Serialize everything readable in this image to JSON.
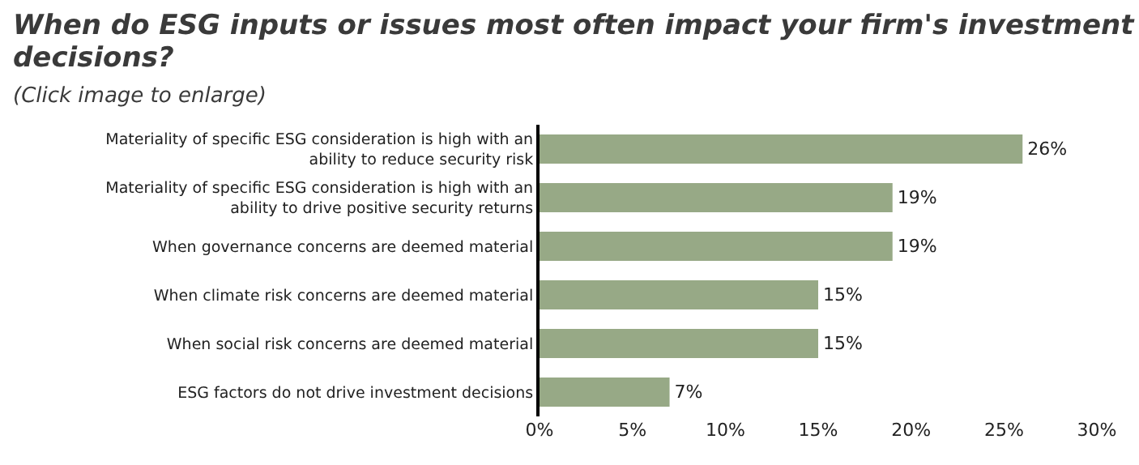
{
  "chart_data": {
    "type": "bar",
    "orientation": "horizontal",
    "title": "When do ESG inputs or issues most often impact your firm's investment decisions?",
    "subtitle": "(Click image to enlarge)",
    "categories": [
      "Materiality of specific ESG consideration is high with an ability to reduce security risk",
      "Materiality of specific ESG consideration is high with an ability to drive positive security returns",
      "When governance concerns are deemed material",
      "When climate risk concerns are deemed material",
      "When social risk concerns are deemed material",
      "ESG factors do not drive investment decisions"
    ],
    "values": [
      26,
      19,
      19,
      15,
      15,
      7
    ],
    "value_labels": [
      "26%",
      "19%",
      "19%",
      "15%",
      "15%",
      "7%"
    ],
    "color": "#97a986",
    "xlim": [
      0,
      30
    ],
    "xticks": [
      {
        "value": 0,
        "label": "0%"
      },
      {
        "value": 5,
        "label": "5%"
      },
      {
        "value": 10,
        "label": "10%"
      },
      {
        "value": 15,
        "label": "15%"
      },
      {
        "value": 20,
        "label": "20%"
      },
      {
        "value": 25,
        "label": "25%"
      },
      {
        "value": 30,
        "label": "30%"
      }
    ],
    "grid": false,
    "legend": false
  }
}
